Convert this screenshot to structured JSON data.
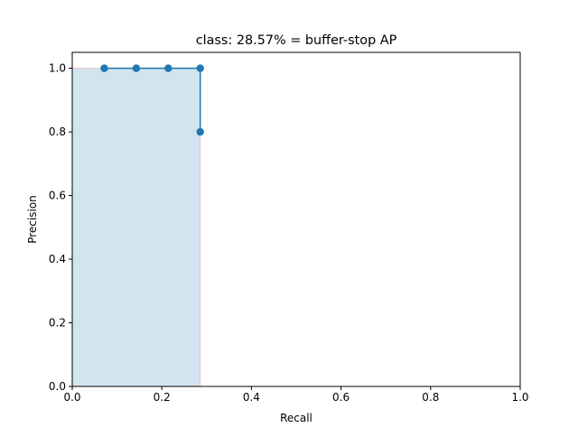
{
  "chart_data": {
    "type": "line",
    "title": "class: 28.57% = buffer-stop AP",
    "xlabel": "Recall",
    "ylabel": "Precision",
    "xlim": [
      0.0,
      1.0
    ],
    "ylim": [
      0.0,
      1.05
    ],
    "x_ticks": [
      "0.0",
      "0.2",
      "0.4",
      "0.6",
      "0.8",
      "1.0"
    ],
    "x_tick_values": [
      0.0,
      0.2,
      0.4,
      0.6,
      0.8,
      1.0
    ],
    "y_ticks": [
      "0.0",
      "0.2",
      "0.4",
      "0.6",
      "0.8",
      "1.0"
    ],
    "y_tick_values": [
      0.0,
      0.2,
      0.4,
      0.6,
      0.8,
      1.0
    ],
    "grid": false,
    "series": [
      {
        "x": [
          0.0714,
          0.1429,
          0.2143,
          0.2857,
          0.2857
        ],
        "y": [
          1.0,
          1.0,
          1.0,
          1.0,
          0.8
        ],
        "color": "#1f77b4",
        "marker": "circle"
      }
    ],
    "filled_area": {
      "x": [
        0.0,
        0.0714,
        0.1429,
        0.2143,
        0.2857
      ],
      "y": [
        1.0,
        1.0,
        1.0,
        1.0,
        1.0
      ],
      "fill_color": "#1f77b4",
      "fill_opacity": 0.2,
      "edge_color": "#ff0000",
      "edge_opacity": 0.2
    }
  }
}
